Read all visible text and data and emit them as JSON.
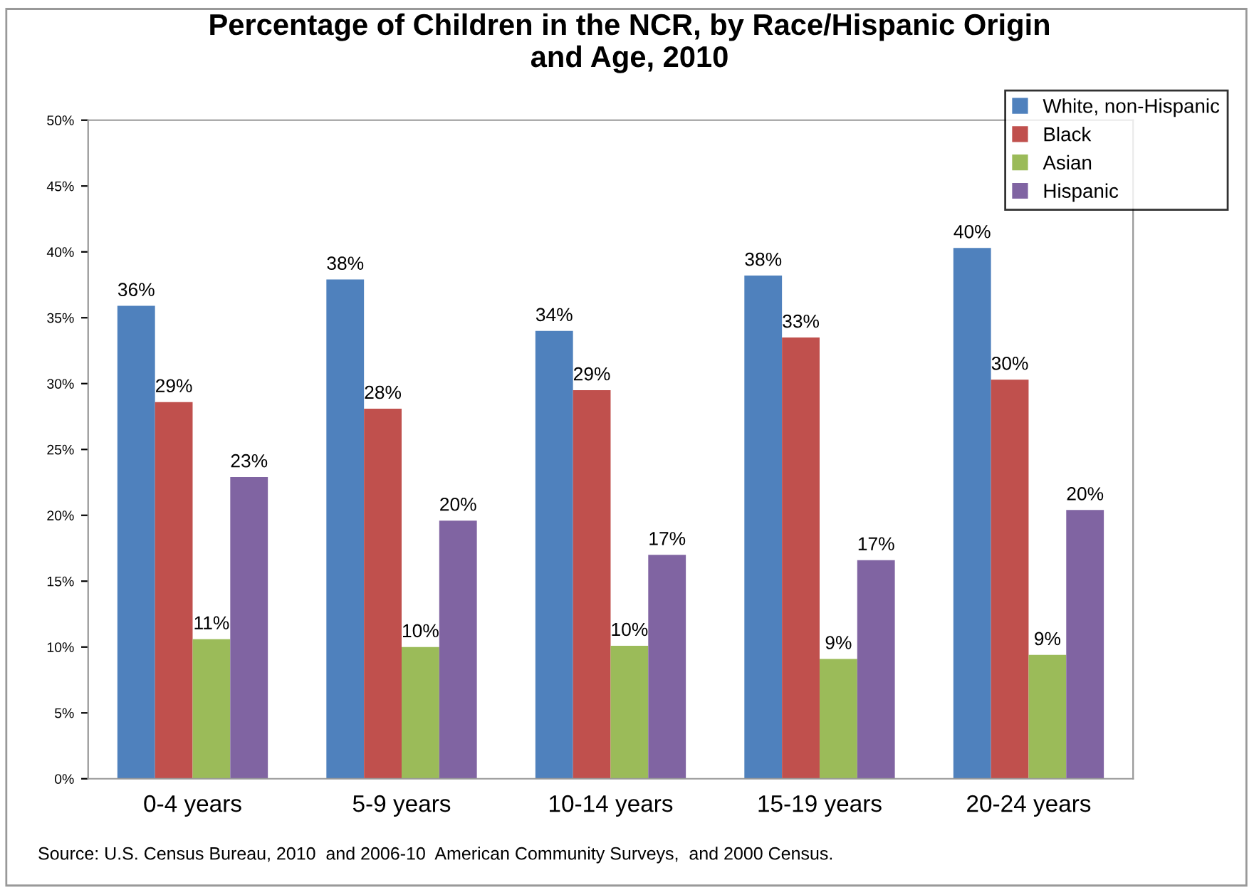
{
  "chart_data": {
    "type": "bar",
    "title": "Percentage of Children in the NCR, by Race/Hispanic Origin\nand Age, 2010",
    "categories": [
      "0-4 years",
      "5-9 years",
      "10-14 years",
      "15-19 years",
      "20-24 years"
    ],
    "series": [
      {
        "name": "White, non-Hispanic",
        "color": "#4f81bd",
        "values": [
          35.9,
          37.9,
          34.0,
          38.2,
          40.3
        ],
        "value_labels": [
          "36%",
          "38%",
          "34%",
          "38%",
          "40%"
        ]
      },
      {
        "name": "Black",
        "color": "#c0504d",
        "values": [
          28.6,
          28.1,
          29.5,
          33.5,
          30.3
        ],
        "value_labels": [
          "29%",
          "28%",
          "29%",
          "33%",
          "30%"
        ]
      },
      {
        "name": "Asian",
        "color": "#9bbb59",
        "values": [
          10.6,
          10.0,
          10.1,
          9.1,
          9.4
        ],
        "value_labels": [
          "11%",
          "10%",
          "10%",
          "9%",
          "9%"
        ]
      },
      {
        "name": "Hispanic",
        "color": "#8064a2",
        "values": [
          22.9,
          19.6,
          17.0,
          16.6,
          20.4
        ],
        "value_labels": [
          "23%",
          "20%",
          "17%",
          "17%",
          "20%"
        ]
      }
    ],
    "ylim": [
      0,
      50
    ],
    "yticks": [
      {
        "value": 0,
        "label": "0%"
      },
      {
        "value": 5,
        "label": "5%"
      },
      {
        "value": 10,
        "label": "10%"
      },
      {
        "value": 15,
        "label": "15%"
      },
      {
        "value": 20,
        "label": "20%"
      },
      {
        "value": 25,
        "label": "25%"
      },
      {
        "value": 30,
        "label": "30%"
      },
      {
        "value": 35,
        "label": "35%"
      },
      {
        "value": 40,
        "label": "40%"
      },
      {
        "value": 45,
        "label": "45%"
      },
      {
        "value": 50,
        "label": "50%"
      }
    ],
    "grid": false,
    "legend": "top right",
    "annotations": [
      "Source: U.S. Census Bureau, 2010  and 2006-10  American Community Surveys,  and 2000 Census."
    ]
  }
}
